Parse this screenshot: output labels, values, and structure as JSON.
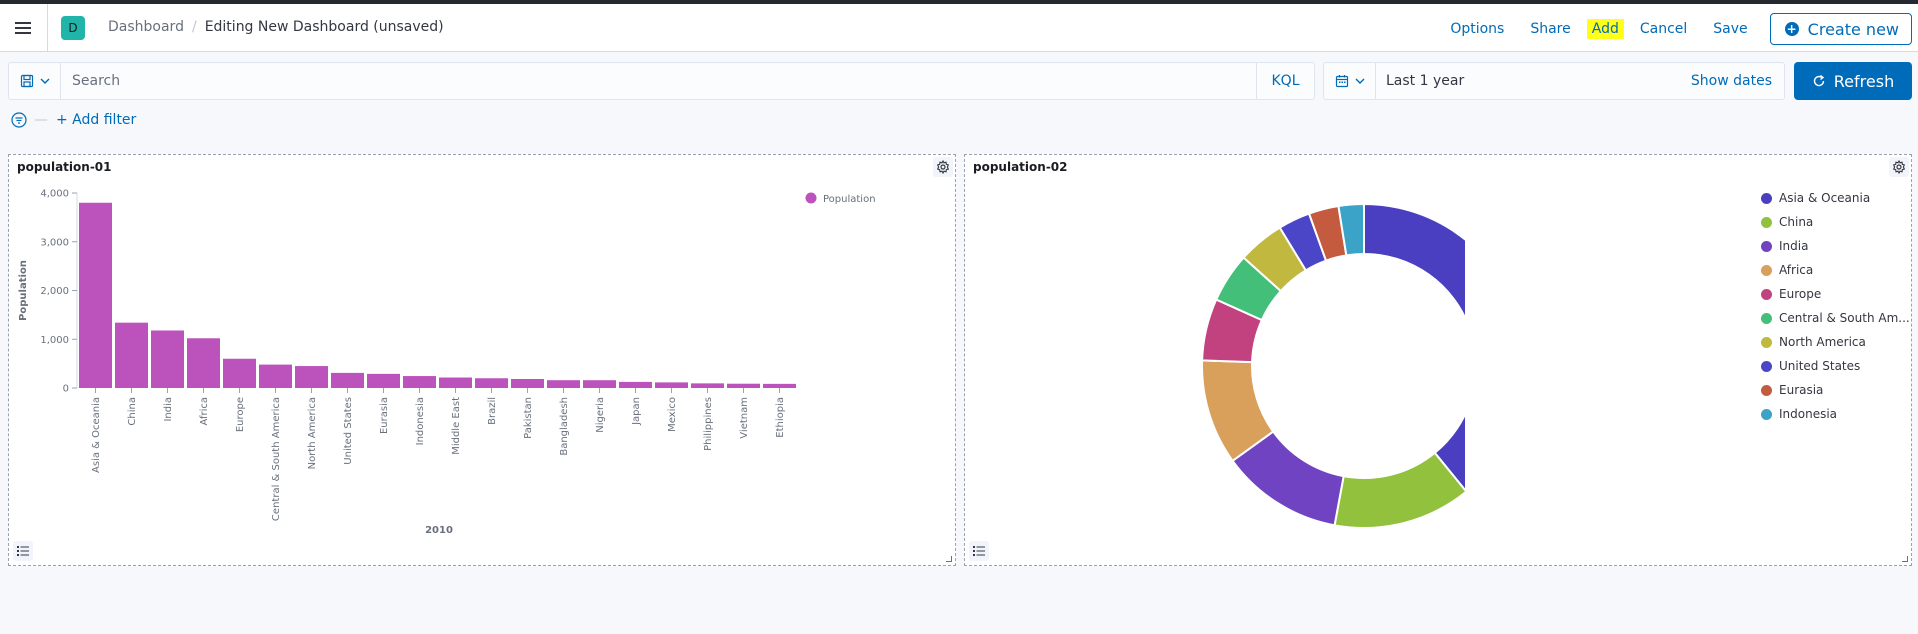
{
  "header": {
    "space_initial": "D",
    "breadcrumb_root": "Dashboard",
    "breadcrumb_current": "Editing New Dashboard (unsaved)",
    "actions": {
      "options": "Options",
      "share": "Share",
      "add": "Add",
      "cancel": "Cancel",
      "save": "Save",
      "create_new": "Create new"
    }
  },
  "querybar": {
    "search_placeholder": "Search",
    "language": "KQL"
  },
  "datepicker": {
    "range": "Last 1 year",
    "show_dates": "Show dates"
  },
  "refresh_label": "Refresh",
  "filters": {
    "add_filter": "+ Add filter"
  },
  "panels": {
    "bar": {
      "title": "population-01"
    },
    "donut": {
      "title": "population-02"
    }
  },
  "chart_data": [
    {
      "type": "bar",
      "title": "population-01",
      "xlabel": "2010",
      "ylabel": "Population",
      "ylim": [
        0,
        4000
      ],
      "yticks": [
        0,
        1000,
        2000,
        3000,
        4000
      ],
      "ytick_labels": [
        "0",
        "1,000",
        "2,000",
        "3,000",
        "4,000"
      ],
      "legend_position": "top-right",
      "categories": [
        "Asia & Oceania",
        "China",
        "India",
        "Africa",
        "Europe",
        "Central & South America",
        "North America",
        "United States",
        "Eurasia",
        "Indonesia",
        "Middle East",
        "Brazil",
        "Pakistan",
        "Bangladesh",
        "Nigeria",
        "Japan",
        "Mexico",
        "Philippines",
        "Vietnam",
        "Ethiopia"
      ],
      "series": [
        {
          "name": "Population",
          "color": "#bc52bc",
          "values": [
            3800,
            1340,
            1180,
            1020,
            600,
            480,
            450,
            310,
            290,
            245,
            215,
            200,
            185,
            160,
            160,
            125,
            115,
            95,
            88,
            85
          ]
        }
      ]
    },
    {
      "type": "pie",
      "title": "population-02",
      "donut": true,
      "legend_position": "top-right",
      "categories": [
        "Asia & Oceania",
        "China",
        "India",
        "Africa",
        "Europe",
        "Central & South America",
        "North America",
        "United States",
        "Eurasia",
        "Indonesia"
      ],
      "legend_labels": [
        "Asia & Oceania",
        "China",
        "India",
        "Africa",
        "Europe",
        "Central & South Am...",
        "North America",
        "United States",
        "Eurasia",
        "Indonesia"
      ],
      "values": [
        3800,
        1340,
        1180,
        1020,
        600,
        480,
        450,
        310,
        290,
        245
      ],
      "colors": [
        "#4a3fc1",
        "#92c23d",
        "#6f43c1",
        "#d9a05b",
        "#c2417f",
        "#44bf7a",
        "#c0b83f",
        "#4b46c7",
        "#c55b3e",
        "#3ba3c7"
      ]
    }
  ]
}
